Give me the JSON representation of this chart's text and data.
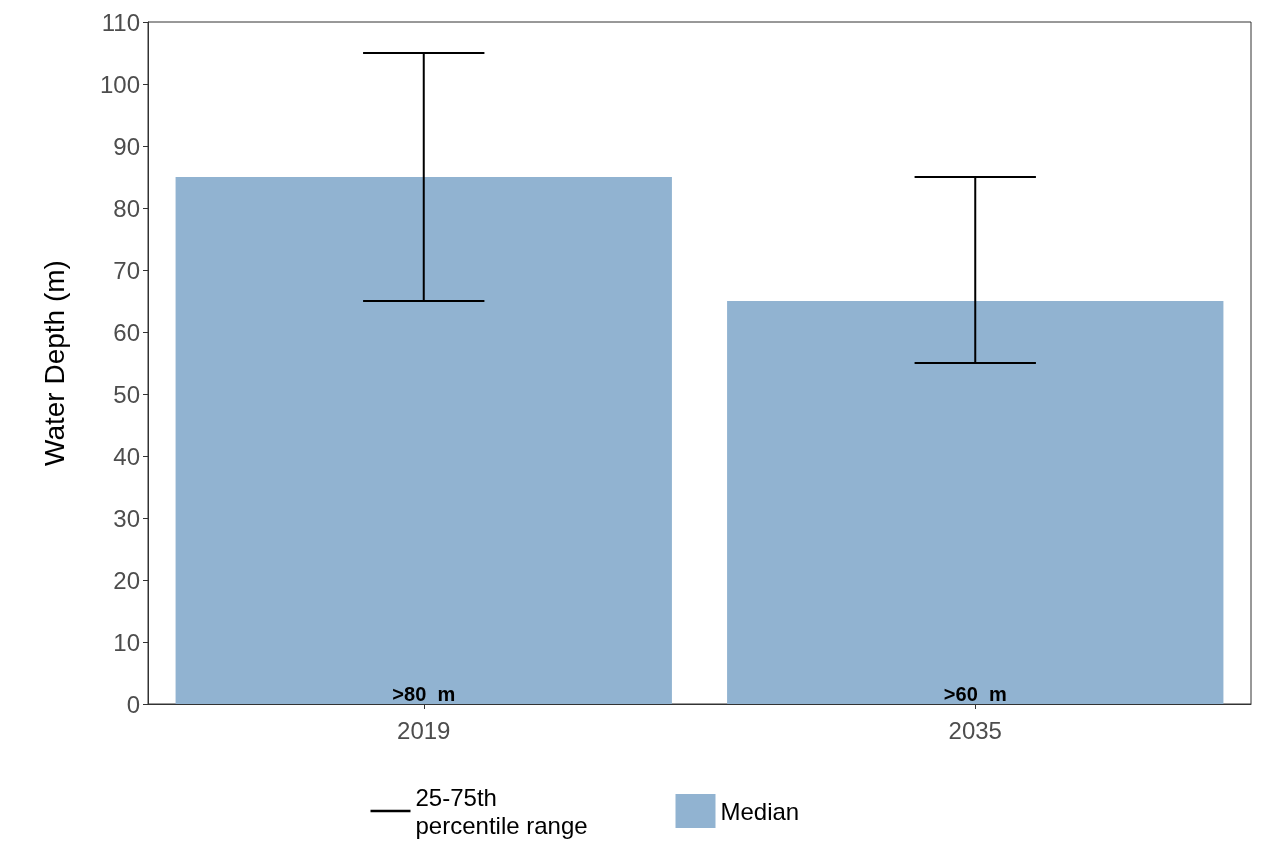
{
  "chart_data": {
    "type": "bar",
    "ylabel": "Water Depth (m)",
    "categories": [
      "2019",
      "2035"
    ],
    "series": [
      {
        "name": "Median",
        "color": "#91b3d1",
        "values": [
          85,
          65
        ],
        "errors": [
          [
            65,
            105
          ],
          [
            55,
            85
          ]
        ],
        "value_labels": [
          ">80  m",
          ">60  m"
        ]
      }
    ],
    "annotations": [
      "25-75th percentile range"
    ],
    "ylim": [
      0,
      110
    ],
    "yticks": [
      0,
      10,
      20,
      30,
      40,
      50,
      60,
      70,
      80,
      90,
      100,
      110
    ],
    "grid": false,
    "legend": "bottom"
  }
}
